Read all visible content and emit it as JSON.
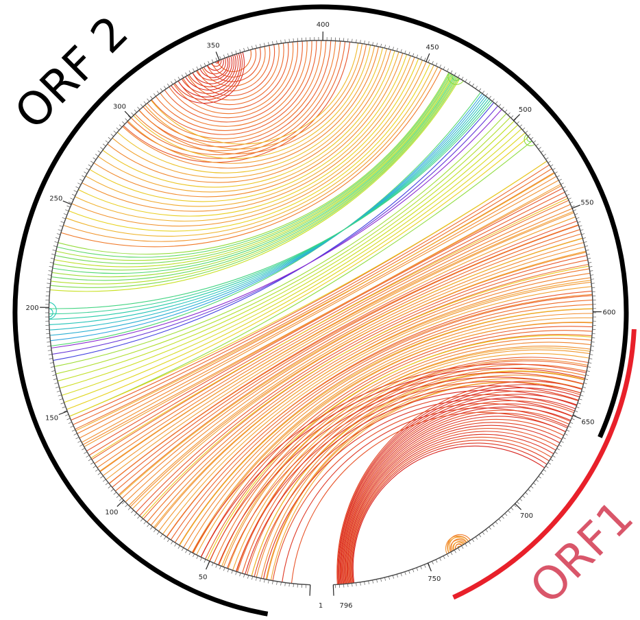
{
  "labels": {
    "orf2": "ORF 2",
    "orf1": "ORF1"
  },
  "sequence": {
    "start": 1,
    "end": 796,
    "start_label": "1",
    "end_label": "796"
  },
  "ticks": [
    {
      "pos": 50,
      "label": "50"
    },
    {
      "pos": 100,
      "label": "100"
    },
    {
      "pos": 150,
      "label": "150"
    },
    {
      "pos": 200,
      "label": "200"
    },
    {
      "pos": 250,
      "label": "250"
    },
    {
      "pos": 300,
      "label": "300"
    },
    {
      "pos": 350,
      "label": "350"
    },
    {
      "pos": 400,
      "label": "400"
    },
    {
      "pos": 450,
      "label": "450"
    },
    {
      "pos": 500,
      "label": "500"
    },
    {
      "pos": 550,
      "label": "550"
    },
    {
      "pos": 600,
      "label": "600"
    },
    {
      "pos": 650,
      "label": "650"
    },
    {
      "pos": 700,
      "label": "700"
    },
    {
      "pos": 750,
      "label": "750"
    }
  ],
  "colors": {
    "orf2_arc": "#000000",
    "orf1_arc": "#e8202a",
    "orf1_text": "#d9566a",
    "circle": "#444444",
    "palette": [
      "#d8251f",
      "#e8542a",
      "#f07a2a",
      "#f2a531",
      "#e8d21e",
      "#c8e021",
      "#8fdc3e",
      "#4fd86f",
      "#22c9b3",
      "#2ea5e0",
      "#4040e0",
      "#8a2ad0"
    ]
  },
  "arc_groups": [
    {
      "from": [
        300,
        355
      ],
      "to": [
        420,
        372
      ],
      "count": 22,
      "color": [
        1,
        2
      ]
    },
    {
      "from": [
        330,
        356
      ],
      "to": [
        368,
        355
      ],
      "count": 14,
      "color": [
        0,
        1
      ]
    },
    {
      "from": [
        240,
        318
      ],
      "to": [
        466,
        424
      ],
      "count": 22,
      "color": [
        2,
        4
      ]
    },
    {
      "from": [
        212,
        235
      ],
      "to": [
        476,
        470
      ],
      "count": 12,
      "color": [
        5,
        7
      ]
    },
    {
      "from": [
        185,
        203
      ],
      "to": [
        488,
        495
      ],
      "count": 8,
      "color": [
        7,
        9
      ]
    },
    {
      "from": [
        178,
        184
      ],
      "to": [
        496,
        501
      ],
      "count": 3,
      "color": [
        10,
        11
      ]
    },
    {
      "from": [
        150,
        175
      ],
      "to": [
        522,
        504
      ],
      "count": 8,
      "color": [
        6,
        4
      ]
    },
    {
      "from": [
        20,
        148
      ],
      "to": [
        650,
        534
      ],
      "count": 55,
      "color": [
        3,
        1
      ]
    },
    {
      "from": [
        150,
        22
      ],
      "to": [
        534,
        650
      ],
      "count": 18,
      "color": [
        4,
        2
      ]
    },
    {
      "from": [
        10,
        60
      ],
      "to": [
        670,
        640
      ],
      "count": 12,
      "color": [
        1,
        0
      ]
    },
    {
      "from": [
        800,
        808
      ],
      "to": [
        690,
        648
      ],
      "count": 22,
      "color": [
        0,
        1
      ]
    },
    {
      "from": [
        740,
        753
      ],
      "to": [
        752,
        741
      ],
      "count": 12,
      "color": [
        2,
        3
      ]
    },
    {
      "from": [
        470,
        474
      ],
      "to": [
        478,
        474
      ],
      "count": 3,
      "color": [
        6,
        7
      ]
    },
    {
      "from": [
        518,
        520
      ],
      "to": [
        524,
        520
      ],
      "count": 3,
      "color": [
        6,
        7
      ]
    },
    {
      "from": [
        198,
        200
      ],
      "to": [
        206,
        200
      ],
      "count": 3,
      "color": [
        8,
        8
      ]
    }
  ]
}
